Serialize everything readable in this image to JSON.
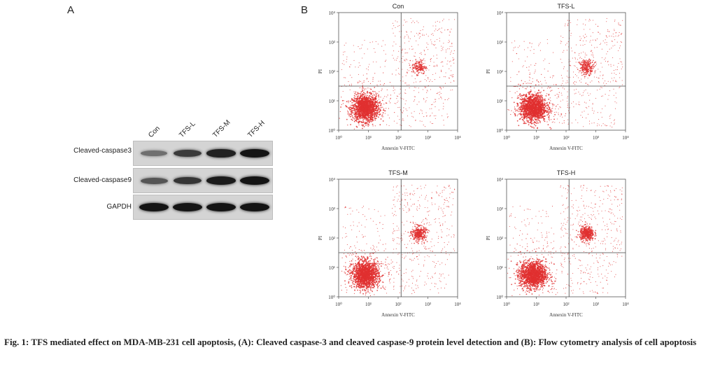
{
  "panel_a": {
    "letter": "A",
    "lanes": [
      "Con",
      "TFS-L",
      "TFS-M",
      "TFS-H"
    ],
    "rows": [
      {
        "label": "Cleaved-caspase3",
        "intensity": [
          0.3,
          0.7,
          0.9,
          1.0
        ]
      },
      {
        "label": "Cleaved-caspase9",
        "intensity": [
          0.5,
          0.75,
          0.95,
          1.0
        ]
      },
      {
        "label": "GAPDH",
        "intensity": [
          1.0,
          1.0,
          1.0,
          1.0
        ]
      }
    ]
  },
  "panel_b": {
    "letter": "B",
    "xlabel": "Annexin V-FITC",
    "ylabel": "PI",
    "ticks": [
      "10⁰",
      "10¹",
      "10²",
      "10³",
      "10⁴"
    ],
    "point_color": "#e03030",
    "plots": [
      {
        "title": "Con",
        "late_cluster_strength": 0.25
      },
      {
        "title": "TFS-L",
        "late_cluster_strength": 0.45
      },
      {
        "title": "TFS-M",
        "late_cluster_strength": 0.75
      },
      {
        "title": "TFS-H",
        "late_cluster_strength": 1.0
      }
    ]
  },
  "caption": {
    "text": "Fig. 1: TFS mediated effect on MDA-MB-231 cell apoptosis, (A): Cleaved caspase-3 and cleaved caspase-9 protein level detection and (B): Flow cytometry analysis of cell apoptosis"
  }
}
